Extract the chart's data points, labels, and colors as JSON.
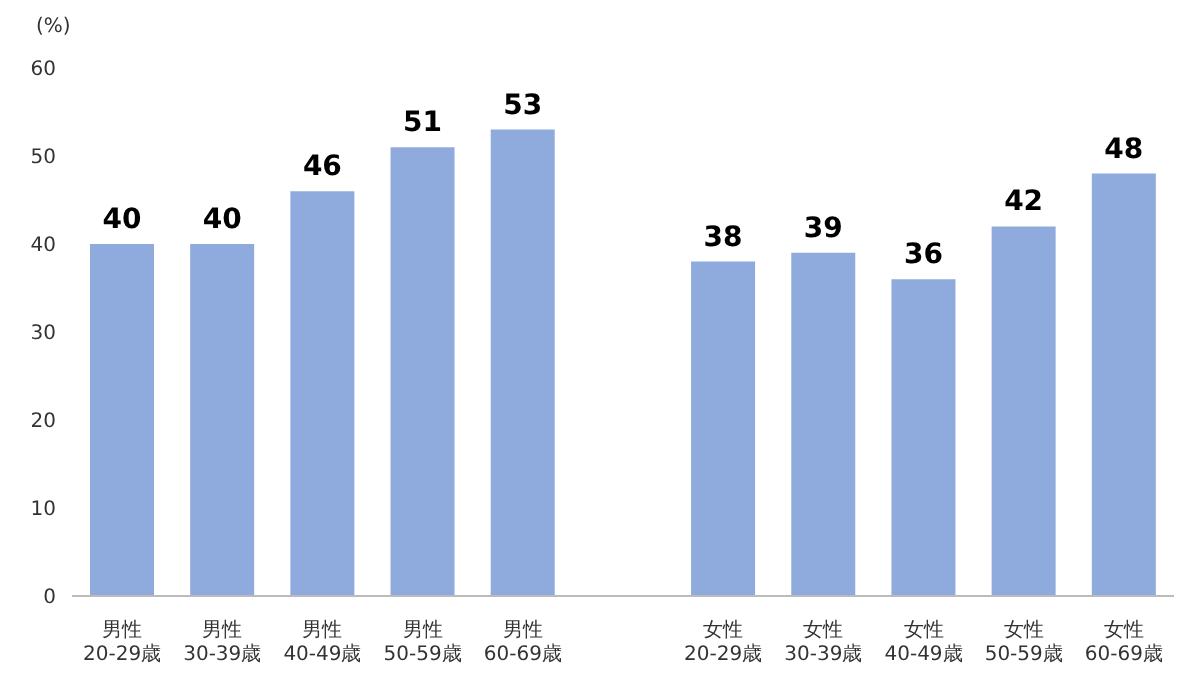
{
  "chart_data": {
    "type": "bar",
    "ylabel": "(%)",
    "categories": [
      "男性20-29歳",
      "男性30-39歳",
      "男性40-49歳",
      "男性50-59歳",
      "男性60-69歳",
      null,
      "女性20-29歳",
      "女性30-39歳",
      "女性40-49歳",
      "女性50-59歳",
      "女性60-69歳"
    ],
    "values": [
      40,
      40,
      46,
      51,
      53,
      null,
      38,
      39,
      36,
      42,
      48
    ],
    "color": "#8faadc",
    "ylim": [
      0,
      60
    ],
    "yticks": [
      0,
      10,
      20,
      30,
      40,
      50,
      60
    ],
    "grid": false,
    "data_labels": true
  }
}
